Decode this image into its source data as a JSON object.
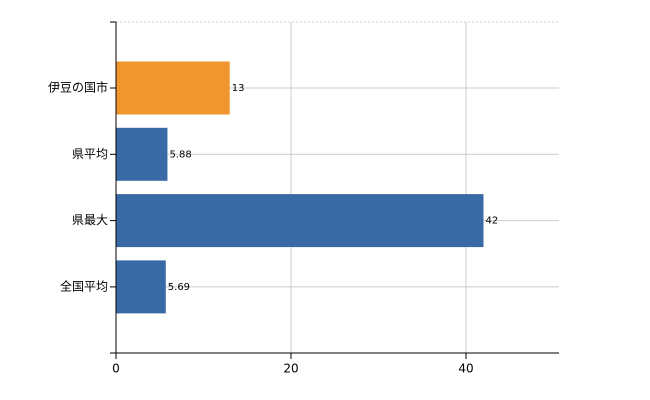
{
  "chart_data": {
    "type": "barh",
    "categories": [
      "伊豆の国市",
      "県平均",
      "県最大",
      "全国平均"
    ],
    "values": [
      13,
      5.88,
      42,
      5.69
    ],
    "colors": [
      "#f0962f",
      "#3a6aa6",
      "#3a6aa6",
      "#3a6aa6"
    ],
    "xlim": [
      0,
      50
    ],
    "xticks": [
      0,
      20,
      40
    ],
    "grid": true
  }
}
